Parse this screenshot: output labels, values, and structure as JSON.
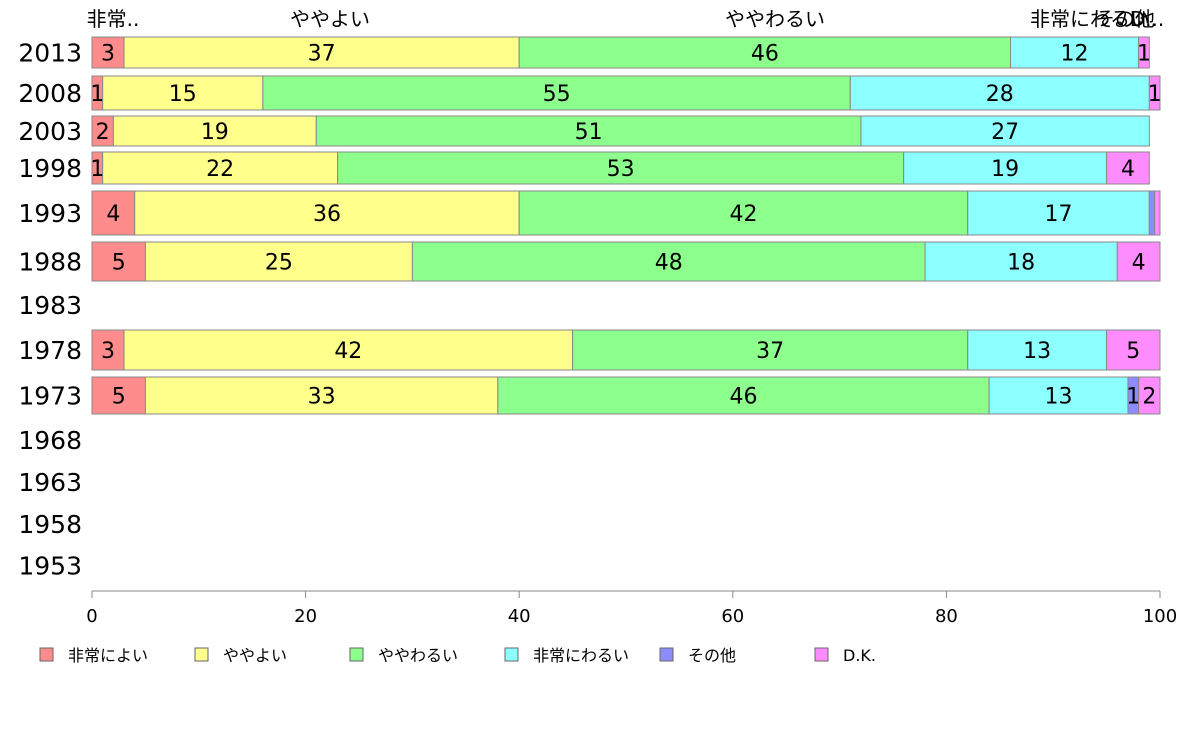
{
  "chart_data": {
    "type": "bar",
    "orientation": "horizontal",
    "stacked": true,
    "categories": [
      "2013",
      "2008",
      "2003",
      "1998",
      "1993",
      "1988",
      "1983",
      "1978",
      "1973",
      "1968",
      "1963",
      "1958",
      "1953"
    ],
    "top_labels": [
      "非常..",
      "ややよい",
      "ややわるい",
      "非常にわるい",
      "その他",
      "D..."
    ],
    "series": [
      {
        "name": "非常によい",
        "color": "#ff8c8c",
        "values": [
          3,
          1,
          2,
          1,
          4,
          5,
          null,
          3,
          5,
          null,
          null,
          null,
          null
        ]
      },
      {
        "name": "ややよい",
        "color": "#ffff8c",
        "values": [
          37,
          15,
          19,
          22,
          36,
          25,
          null,
          42,
          33,
          null,
          null,
          null,
          null
        ]
      },
      {
        "name": "ややわるい",
        "color": "#8cff8c",
        "values": [
          46,
          55,
          51,
          53,
          42,
          48,
          null,
          37,
          46,
          null,
          null,
          null,
          null
        ]
      },
      {
        "name": "非常にわるい",
        "color": "#8cffff",
        "values": [
          12,
          28,
          27,
          19,
          17,
          18,
          null,
          13,
          13,
          null,
          null,
          null,
          null
        ]
      },
      {
        "name": "その他",
        "color": "#8c8cff",
        "values": [
          0,
          0,
          0,
          0,
          0.5,
          0,
          null,
          0,
          1,
          null,
          null,
          null,
          null
        ]
      },
      {
        "name": "D.K.",
        "color": "#ff8cff",
        "values": [
          1,
          1,
          0,
          4,
          0.5,
          4,
          null,
          5,
          2,
          null,
          null,
          null,
          null
        ]
      }
    ],
    "hidden_labels": [
      [],
      [],
      [],
      [],
      [
        "その他",
        "D.K."
      ],
      [],
      [],
      [],
      [],
      [],
      [],
      [],
      []
    ],
    "xlim": [
      0,
      100
    ],
    "xticks": [
      0,
      20,
      40,
      60,
      80,
      100
    ],
    "title": "",
    "xlabel": "",
    "ylabel": "",
    "grid": false,
    "legend_position": "bottom"
  }
}
